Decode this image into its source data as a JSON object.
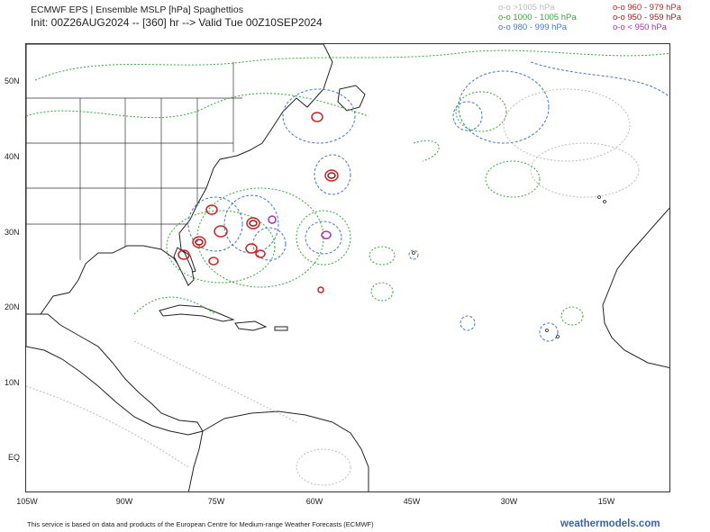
{
  "header": {
    "title": "ECMWF EPS | Ensemble MSLP [hPa] Spaghettios",
    "subtitle": "Init: 00Z26AUG2024 -- [360] hr --> Valid Tue 00Z10SEP2024"
  },
  "legend": [
    {
      "label": "o-o >1005 hPa",
      "color": "#bbbbbb"
    },
    {
      "label": "o-o 1000 - 1005 hPa",
      "color": "#33aa33"
    },
    {
      "label": "o-o 980 - 999 hPa",
      "color": "#4477cc"
    },
    {
      "label": "o-o 960 - 979 hPa",
      "color": "#cc2222"
    },
    {
      "label": "o-o 950 - 959 hPa",
      "color": "#991a1a"
    },
    {
      "label": "o-o < 950 hPa",
      "color": "#aa33aa"
    }
  ],
  "axes": {
    "lat_labels": [
      "50N",
      "40N",
      "30N",
      "20N",
      "10N",
      "EQ"
    ],
    "lon_labels": [
      "105W",
      "90W",
      "75W",
      "60W",
      "45W",
      "30W",
      "15W"
    ]
  },
  "footer": {
    "note": "This service is based on data and products of the European Centre for Medium-range Weather Forecasts (ECMWF)",
    "brand": "weathermodels.com"
  }
}
